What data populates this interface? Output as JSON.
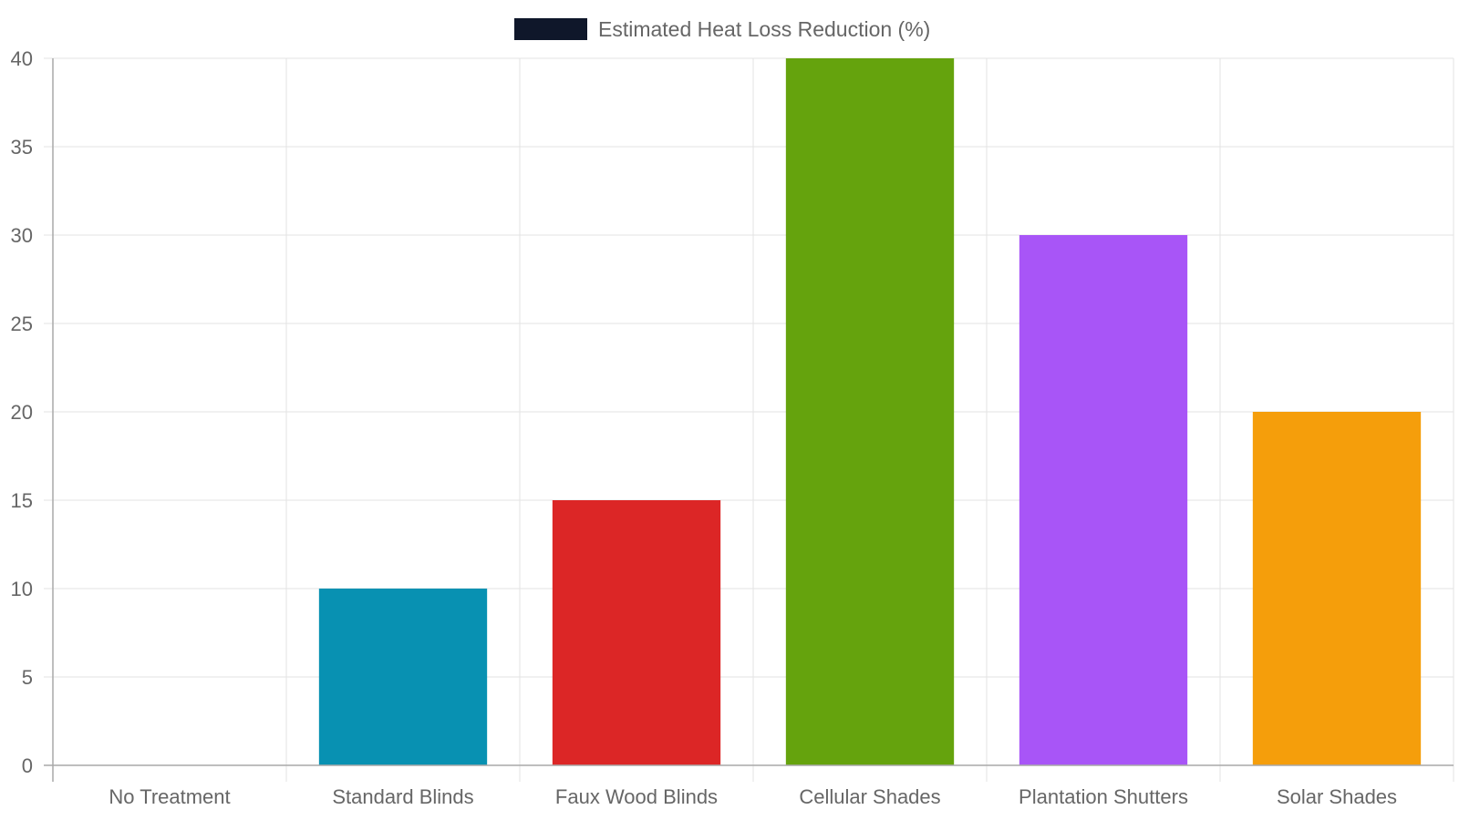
{
  "chart_data": {
    "type": "bar",
    "categories": [
      "No Treatment",
      "Standard Blinds",
      "Faux Wood Blinds",
      "Cellular Shades",
      "Plantation Shutters",
      "Solar Shades"
    ],
    "series": [
      {
        "name": "Estimated Heat Loss Reduction (%)",
        "values": [
          0,
          10,
          15,
          40,
          30,
          20
        ],
        "colors": [
          "#0f172a",
          "#0891b2",
          "#dc2626",
          "#65a30d",
          "#a855f7",
          "#f59e0b"
        ]
      }
    ],
    "legend_swatch_color": "#0f172a",
    "ylim": [
      0,
      40
    ],
    "yticks": [
      0,
      5,
      10,
      15,
      20,
      25,
      30,
      35,
      40
    ],
    "grid": true,
    "legend_position": "top-center"
  }
}
